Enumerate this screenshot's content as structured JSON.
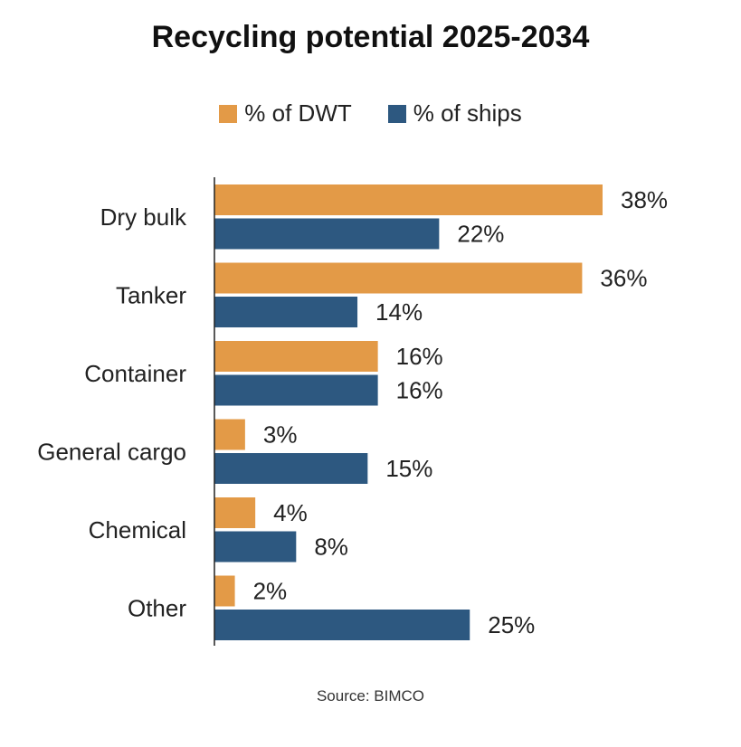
{
  "title": "Recycling potential 2025-2034",
  "source": "Source: BIMCO",
  "colors": {
    "dwt": "#E39A47",
    "ships": "#2D5880"
  },
  "chart_data": {
    "type": "bar",
    "orientation": "horizontal",
    "title": "Recycling potential 2025-2034",
    "categories": [
      "Dry bulk",
      "Tanker",
      "Container",
      "General cargo",
      "Chemical",
      "Other"
    ],
    "series": [
      {
        "name": "% of DWT",
        "values": [
          38,
          36,
          16,
          3,
          4,
          2
        ],
        "labels": [
          "38%",
          "36%",
          "16%",
          "3%",
          "4%",
          "2%"
        ]
      },
      {
        "name": "% of ships",
        "values": [
          22,
          14,
          16,
          15,
          8,
          25
        ],
        "labels": [
          "22%",
          "14%",
          "16%",
          "15%",
          "8%",
          "25%"
        ]
      }
    ],
    "xlim": [
      0,
      38
    ],
    "grid": false,
    "legend": "top"
  }
}
